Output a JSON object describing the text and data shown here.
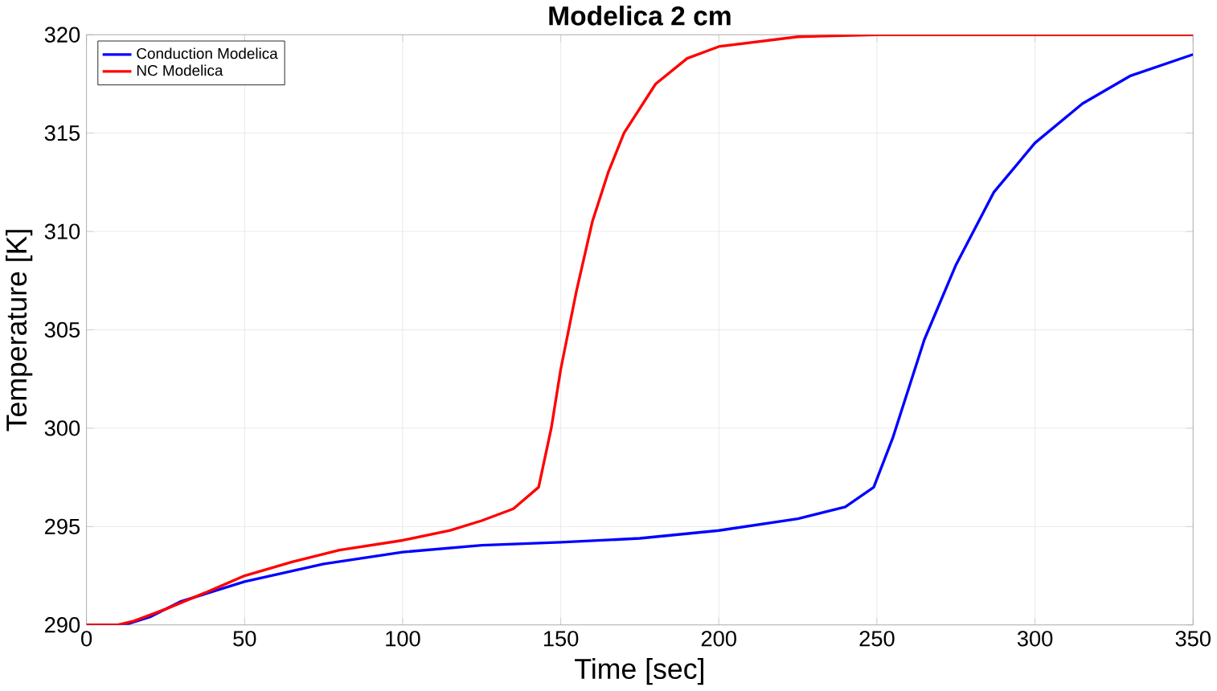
{
  "chart_data": {
    "type": "line",
    "title": "Modelica 2 cm",
    "xlabel": "Time [sec]",
    "ylabel": "Temperature [K]",
    "xlim": [
      0,
      350
    ],
    "ylim": [
      290,
      320
    ],
    "xticks": [
      0,
      50,
      100,
      150,
      200,
      250,
      300,
      350
    ],
    "yticks": [
      290,
      295,
      300,
      305,
      310,
      315,
      320
    ],
    "grid": true,
    "legend": "top left",
    "line_style": "solid",
    "series": [
      {
        "name": "Conduction Modelica",
        "color": "#0000ff",
        "x": [
          0,
          12,
          20,
          30,
          50,
          75,
          100,
          125,
          150,
          175,
          200,
          225,
          240,
          249,
          255,
          260,
          265,
          275,
          287,
          300,
          315,
          330,
          350
        ],
        "values": [
          290,
          290,
          290.4,
          291.2,
          292.2,
          293.1,
          293.7,
          294.05,
          294.2,
          294.4,
          294.8,
          295.4,
          296,
          297,
          299.5,
          302,
          304.5,
          308.3,
          312,
          314.5,
          316.5,
          317.9,
          319
        ]
      },
      {
        "name": "NC Modelica",
        "color": "#ff0000",
        "x": [
          0,
          10,
          15,
          25,
          40,
          50,
          65,
          80,
          100,
          115,
          125,
          135,
          143,
          147,
          150,
          155,
          160,
          165,
          170,
          180,
          190,
          200,
          225,
          250,
          300,
          350
        ],
        "values": [
          290,
          290,
          290.2,
          290.8,
          291.8,
          292.5,
          293.2,
          293.8,
          294.3,
          294.8,
          295.3,
          295.9,
          297,
          300,
          303,
          307,
          310.5,
          313,
          315,
          317.5,
          318.8,
          319.4,
          319.9,
          320,
          320,
          320
        ]
      }
    ]
  }
}
